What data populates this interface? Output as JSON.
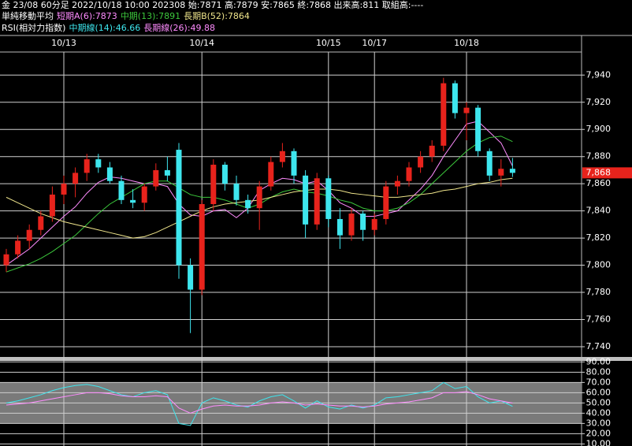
{
  "header": {
    "info": "金 23/08 60分足 2022/10/18 10:00 202308 始:7871 高:7879 安:7865 終:7868 出来高:811 取組高:----",
    "ma_title": "単純移動平均",
    "rsi_title": "RSI(相対力指数)"
  },
  "chart_data": [
    {
      "type": "candlestick",
      "categories": [
        null,
        null,
        null,
        null,
        null,
        "10/13",
        null,
        null,
        null,
        null,
        null,
        null,
        null,
        null,
        null,
        null,
        null,
        "10/14",
        null,
        null,
        null,
        null,
        null,
        null,
        null,
        null,
        null,
        null,
        "10/15",
        null,
        null,
        null,
        "10/17",
        null,
        null,
        null,
        null,
        null,
        null,
        null,
        "10/18",
        null,
        null,
        null,
        null
      ],
      "open": [
        7800,
        7808,
        7818,
        7826,
        7836,
        7852,
        7860,
        7868,
        7878,
        7872,
        7862,
        7848,
        7846,
        7858,
        7870,
        7885,
        7800,
        7782,
        7845,
        7874,
        7860,
        7848,
        7842,
        7858,
        7876,
        7884,
        7866,
        7830,
        7864,
        7834,
        7822,
        7838,
        7826,
        7834,
        7858,
        7862,
        7872,
        7880,
        7888,
        7934,
        7912,
        7916,
        7884,
        7866,
        7871
      ],
      "high": [
        7812,
        7822,
        7830,
        7840,
        7858,
        7866,
        7872,
        7882,
        7882,
        7876,
        7866,
        7856,
        7860,
        7875,
        7880,
        7890,
        7805,
        7848,
        7878,
        7876,
        7866,
        7852,
        7862,
        7880,
        7890,
        7886,
        7870,
        7868,
        7866,
        7842,
        7842,
        7840,
        7838,
        7862,
        7866,
        7876,
        7884,
        7892,
        7938,
        7936,
        7920,
        7918,
        7886,
        7878,
        7879
      ],
      "low": [
        7795,
        7805,
        7812,
        7822,
        7832,
        7845,
        7850,
        7862,
        7868,
        7860,
        7845,
        7842,
        7840,
        7855,
        7862,
        7790,
        7750,
        7778,
        7840,
        7855,
        7844,
        7838,
        7826,
        7855,
        7872,
        7860,
        7820,
        7826,
        7828,
        7812,
        7818,
        7818,
        7822,
        7830,
        7852,
        7858,
        7868,
        7876,
        7884,
        7908,
        7892,
        7880,
        7862,
        7858,
        7865
      ],
      "close": [
        7808,
        7818,
        7826,
        7836,
        7852,
        7860,
        7868,
        7878,
        7872,
        7862,
        7848,
        7846,
        7858,
        7870,
        7866,
        7800,
        7782,
        7845,
        7874,
        7860,
        7848,
        7842,
        7858,
        7876,
        7884,
        7866,
        7830,
        7864,
        7834,
        7822,
        7838,
        7826,
        7834,
        7858,
        7862,
        7872,
        7880,
        7888,
        7934,
        7912,
        7916,
        7884,
        7866,
        7871,
        7868
      ],
      "up_color": "#e8231c",
      "down_color": "#3ee6ee",
      "ylim": [
        7733,
        7957
      ],
      "yticks": [
        {
          "value": 7740,
          "label": "7,740"
        },
        {
          "value": 7760,
          "label": "7,760"
        },
        {
          "value": 7780,
          "label": "7,780"
        },
        {
          "value": 7800,
          "label": "7,800"
        },
        {
          "value": 7820,
          "label": "7,820"
        },
        {
          "value": 7840,
          "label": "7,840"
        },
        {
          "value": 7860,
          "label": "7,860"
        },
        {
          "value": 7880,
          "label": "7,880"
        },
        {
          "value": 7900,
          "label": "7,900"
        },
        {
          "value": 7920,
          "label": "7,920"
        },
        {
          "value": 7940,
          "label": "7,940"
        }
      ],
      "grid": true,
      "last_price": {
        "value": 7868,
        "label": "7,868",
        "color": "#e8231c"
      },
      "series": [
        {
          "name": "短期A(6):7873",
          "color": "#ff8cff",
          "values": [
            7800,
            7806,
            7812,
            7820,
            7828,
            7836,
            7843,
            7853,
            7861,
            7865,
            7864,
            7862,
            7860,
            7860,
            7858,
            7845,
            7837,
            7836,
            7840,
            7841,
            7835,
            7842,
            7855,
            7860,
            7864,
            7863,
            7860,
            7862,
            7855,
            7846,
            7842,
            7836,
            7836,
            7838,
            7840,
            7848,
            7856,
            7866,
            7880,
            7892,
            7904,
            7906,
            7898,
            7890,
            7873
          ]
        },
        {
          "name": "中期(13):7891",
          "color": "#3cc83c",
          "values": [
            7795,
            7798,
            7801,
            7805,
            7810,
            7816,
            7822,
            7830,
            7838,
            7845,
            7850,
            7855,
            7860,
            7862,
            7862,
            7857,
            7852,
            7850,
            7850,
            7848,
            7845,
            7842,
            7845,
            7850,
            7854,
            7856,
            7854,
            7853,
            7851,
            7848,
            7846,
            7842,
            7840,
            7840,
            7842,
            7846,
            7852,
            7860,
            7868,
            7876,
            7884,
            7890,
            7894,
            7895,
            7891
          ]
        },
        {
          "name": "長期B(52):7864",
          "color": "#f0e68c",
          "values": [
            7850,
            7846,
            7842,
            7838,
            7835,
            7832,
            7830,
            7828,
            7826,
            7824,
            7822,
            7820,
            7821,
            7824,
            7828,
            7832,
            7836,
            7840,
            7843,
            7845,
            7846,
            7847,
            7848,
            7850,
            7852,
            7854,
            7855,
            7856,
            7856,
            7855,
            7853,
            7852,
            7851,
            7850,
            7850,
            7851,
            7852,
            7853,
            7855,
            7856,
            7858,
            7860,
            7861,
            7863,
            7864
          ]
        }
      ]
    },
    {
      "type": "line",
      "ylim": [
        8,
        91
      ],
      "yticks": [
        {
          "value": 10,
          "label": "10.00"
        },
        {
          "value": 20,
          "label": "20.00"
        },
        {
          "value": 30,
          "label": "30.00"
        },
        {
          "value": 40,
          "label": "40.00"
        },
        {
          "value": 50,
          "label": "50.00"
        },
        {
          "value": 60,
          "label": "60.00"
        },
        {
          "value": 70,
          "label": "70.00"
        },
        {
          "value": 80,
          "label": "80.00"
        },
        {
          "value": 90,
          "label": "90.00"
        }
      ],
      "band": [
        30,
        70
      ],
      "series": [
        {
          "name": "中期線(14):46.66",
          "color": "#3ee6ee",
          "values": [
            50,
            52,
            55,
            58,
            62,
            65,
            67,
            68,
            66,
            62,
            58,
            56,
            60,
            62,
            58,
            30,
            28,
            50,
            55,
            52,
            48,
            46,
            52,
            56,
            58,
            52,
            45,
            52,
            46,
            44,
            48,
            45,
            48,
            55,
            56,
            58,
            60,
            62,
            70,
            64,
            66,
            56,
            50,
            52,
            46.66
          ]
        },
        {
          "name": "長期線(26):49.88",
          "color": "#ff8cff",
          "values": [
            48,
            49,
            50,
            52,
            54,
            56,
            58,
            60,
            60,
            59,
            57,
            56,
            56,
            57,
            56,
            45,
            40,
            44,
            47,
            48,
            47,
            47,
            48,
            50,
            51,
            50,
            48,
            49,
            48,
            47,
            47,
            46,
            47,
            49,
            50,
            51,
            53,
            55,
            60,
            60,
            61,
            58,
            54,
            52,
            49.88
          ]
        }
      ]
    }
  ]
}
